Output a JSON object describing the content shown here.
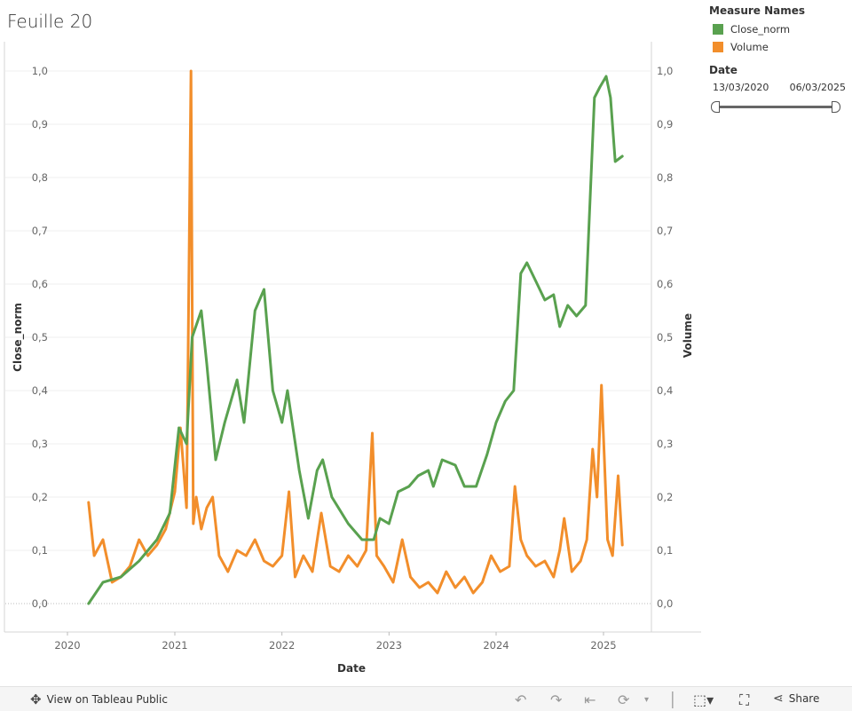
{
  "title": "Feuille 20",
  "legend": {
    "header": "Measure Names",
    "items": [
      {
        "label": "Close_norm",
        "color": "#59a14f"
      },
      {
        "label": "Volume",
        "color": "#f28e2b"
      }
    ]
  },
  "date_filter": {
    "header": "Date",
    "start": "13/03/2020",
    "end": "06/03/2025"
  },
  "toolbar": {
    "view_label": "View on Tableau Public",
    "share_label": "Share",
    "icons": [
      "tableau-logo-icon",
      "undo-icon",
      "redo-icon",
      "revert-icon",
      "refresh-icon",
      "pause-icon",
      "download-icon",
      "fullscreen-icon",
      "share-icon"
    ]
  },
  "chart_data": {
    "type": "line",
    "xlabel": "Date",
    "ylabel_left": "Close_norm",
    "ylabel_right": "Volume",
    "x_range": [
      "2020-03-13",
      "2025-03-06"
    ],
    "x_ticks": [
      "2020",
      "2021",
      "2022",
      "2023",
      "2024",
      "2025"
    ],
    "ylim": [
      0,
      1
    ],
    "y_ticks": [
      "0,0",
      "0,1",
      "0,2",
      "0,3",
      "0,4",
      "0,5",
      "0,6",
      "0,7",
      "0,8",
      "0,9",
      "1,0"
    ],
    "grid": true,
    "legend_position": "right",
    "series": [
      {
        "name": "Close_norm",
        "color": "#59a14f",
        "x": [
          "2020-03-13",
          "2020-05-01",
          "2020-07-01",
          "2020-09-01",
          "2020-11-01",
          "2020-12-15",
          "2021-01-15",
          "2021-02-10",
          "2021-03-01",
          "2021-04-01",
          "2021-04-20",
          "2021-05-20",
          "2021-06-20",
          "2021-08-01",
          "2021-08-25",
          "2021-10-01",
          "2021-11-01",
          "2021-12-01",
          "2022-01-01",
          "2022-01-20",
          "2022-03-01",
          "2022-04-01",
          "2022-05-01",
          "2022-05-20",
          "2022-06-20",
          "2022-08-15",
          "2022-10-01",
          "2022-11-10",
          "2022-12-01",
          "2023-01-01",
          "2023-02-01",
          "2023-03-10",
          "2023-04-10",
          "2023-05-15",
          "2023-06-01",
          "2023-07-01",
          "2023-08-15",
          "2023-09-15",
          "2023-10-25",
          "2023-12-01",
          "2024-01-01",
          "2024-02-01",
          "2024-03-01",
          "2024-03-25",
          "2024-04-15",
          "2024-05-20",
          "2024-06-15",
          "2024-07-15",
          "2024-08-05",
          "2024-09-01",
          "2024-10-01",
          "2024-11-01",
          "2024-12-01",
          "2024-12-20",
          "2025-01-10",
          "2025-01-25",
          "2025-02-10",
          "2025-03-06"
        ],
        "values": [
          0.0,
          0.04,
          0.05,
          0.08,
          0.12,
          0.17,
          0.33,
          0.3,
          0.5,
          0.55,
          0.45,
          0.27,
          0.34,
          0.42,
          0.34,
          0.55,
          0.59,
          0.4,
          0.34,
          0.4,
          0.25,
          0.16,
          0.25,
          0.27,
          0.2,
          0.15,
          0.12,
          0.12,
          0.16,
          0.15,
          0.21,
          0.22,
          0.24,
          0.25,
          0.22,
          0.27,
          0.26,
          0.22,
          0.22,
          0.28,
          0.34,
          0.38,
          0.4,
          0.62,
          0.64,
          0.6,
          0.57,
          0.58,
          0.52,
          0.56,
          0.54,
          0.56,
          0.95,
          0.97,
          0.99,
          0.95,
          0.83,
          0.84
        ]
      },
      {
        "name": "Volume",
        "color": "#f28e2b",
        "x": [
          "2020-03-13",
          "2020-04-01",
          "2020-05-01",
          "2020-06-01",
          "2020-07-01",
          "2020-08-01",
          "2020-09-01",
          "2020-10-01",
          "2020-11-01",
          "2020-12-01",
          "2021-01-01",
          "2021-01-20",
          "2021-02-10",
          "2021-02-25",
          "2021-03-05",
          "2021-03-15",
          "2021-04-01",
          "2021-04-20",
          "2021-05-10",
          "2021-06-01",
          "2021-07-01",
          "2021-08-01",
          "2021-09-01",
          "2021-10-01",
          "2021-11-01",
          "2021-12-01",
          "2022-01-01",
          "2022-01-25",
          "2022-02-15",
          "2022-03-15",
          "2022-04-15",
          "2022-05-15",
          "2022-06-15",
          "2022-07-15",
          "2022-08-15",
          "2022-09-15",
          "2022-10-15",
          "2022-11-05",
          "2022-11-20",
          "2022-12-15",
          "2023-01-15",
          "2023-02-15",
          "2023-03-15",
          "2023-04-15",
          "2023-05-15",
          "2023-06-15",
          "2023-07-15",
          "2023-08-15",
          "2023-09-15",
          "2023-10-15",
          "2023-11-15",
          "2023-12-15",
          "2024-01-15",
          "2024-02-15",
          "2024-03-05",
          "2024-03-25",
          "2024-04-15",
          "2024-05-15",
          "2024-06-15",
          "2024-07-15",
          "2024-08-05",
          "2024-08-20",
          "2024-09-15",
          "2024-10-15",
          "2024-11-05",
          "2024-11-25",
          "2024-12-10",
          "2024-12-25",
          "2025-01-15",
          "2025-02-01",
          "2025-02-20",
          "2025-03-06"
        ],
        "values": [
          0.19,
          0.09,
          0.12,
          0.04,
          0.05,
          0.07,
          0.12,
          0.09,
          0.11,
          0.14,
          0.21,
          0.33,
          0.18,
          1.0,
          0.15,
          0.2,
          0.14,
          0.18,
          0.2,
          0.09,
          0.06,
          0.1,
          0.09,
          0.12,
          0.08,
          0.07,
          0.09,
          0.21,
          0.05,
          0.09,
          0.06,
          0.17,
          0.07,
          0.06,
          0.09,
          0.07,
          0.1,
          0.32,
          0.09,
          0.07,
          0.04,
          0.12,
          0.05,
          0.03,
          0.04,
          0.02,
          0.06,
          0.03,
          0.05,
          0.02,
          0.04,
          0.09,
          0.06,
          0.07,
          0.22,
          0.12,
          0.09,
          0.07,
          0.08,
          0.05,
          0.1,
          0.16,
          0.06,
          0.08,
          0.12,
          0.29,
          0.2,
          0.41,
          0.12,
          0.09,
          0.24,
          0.11
        ]
      }
    ]
  }
}
